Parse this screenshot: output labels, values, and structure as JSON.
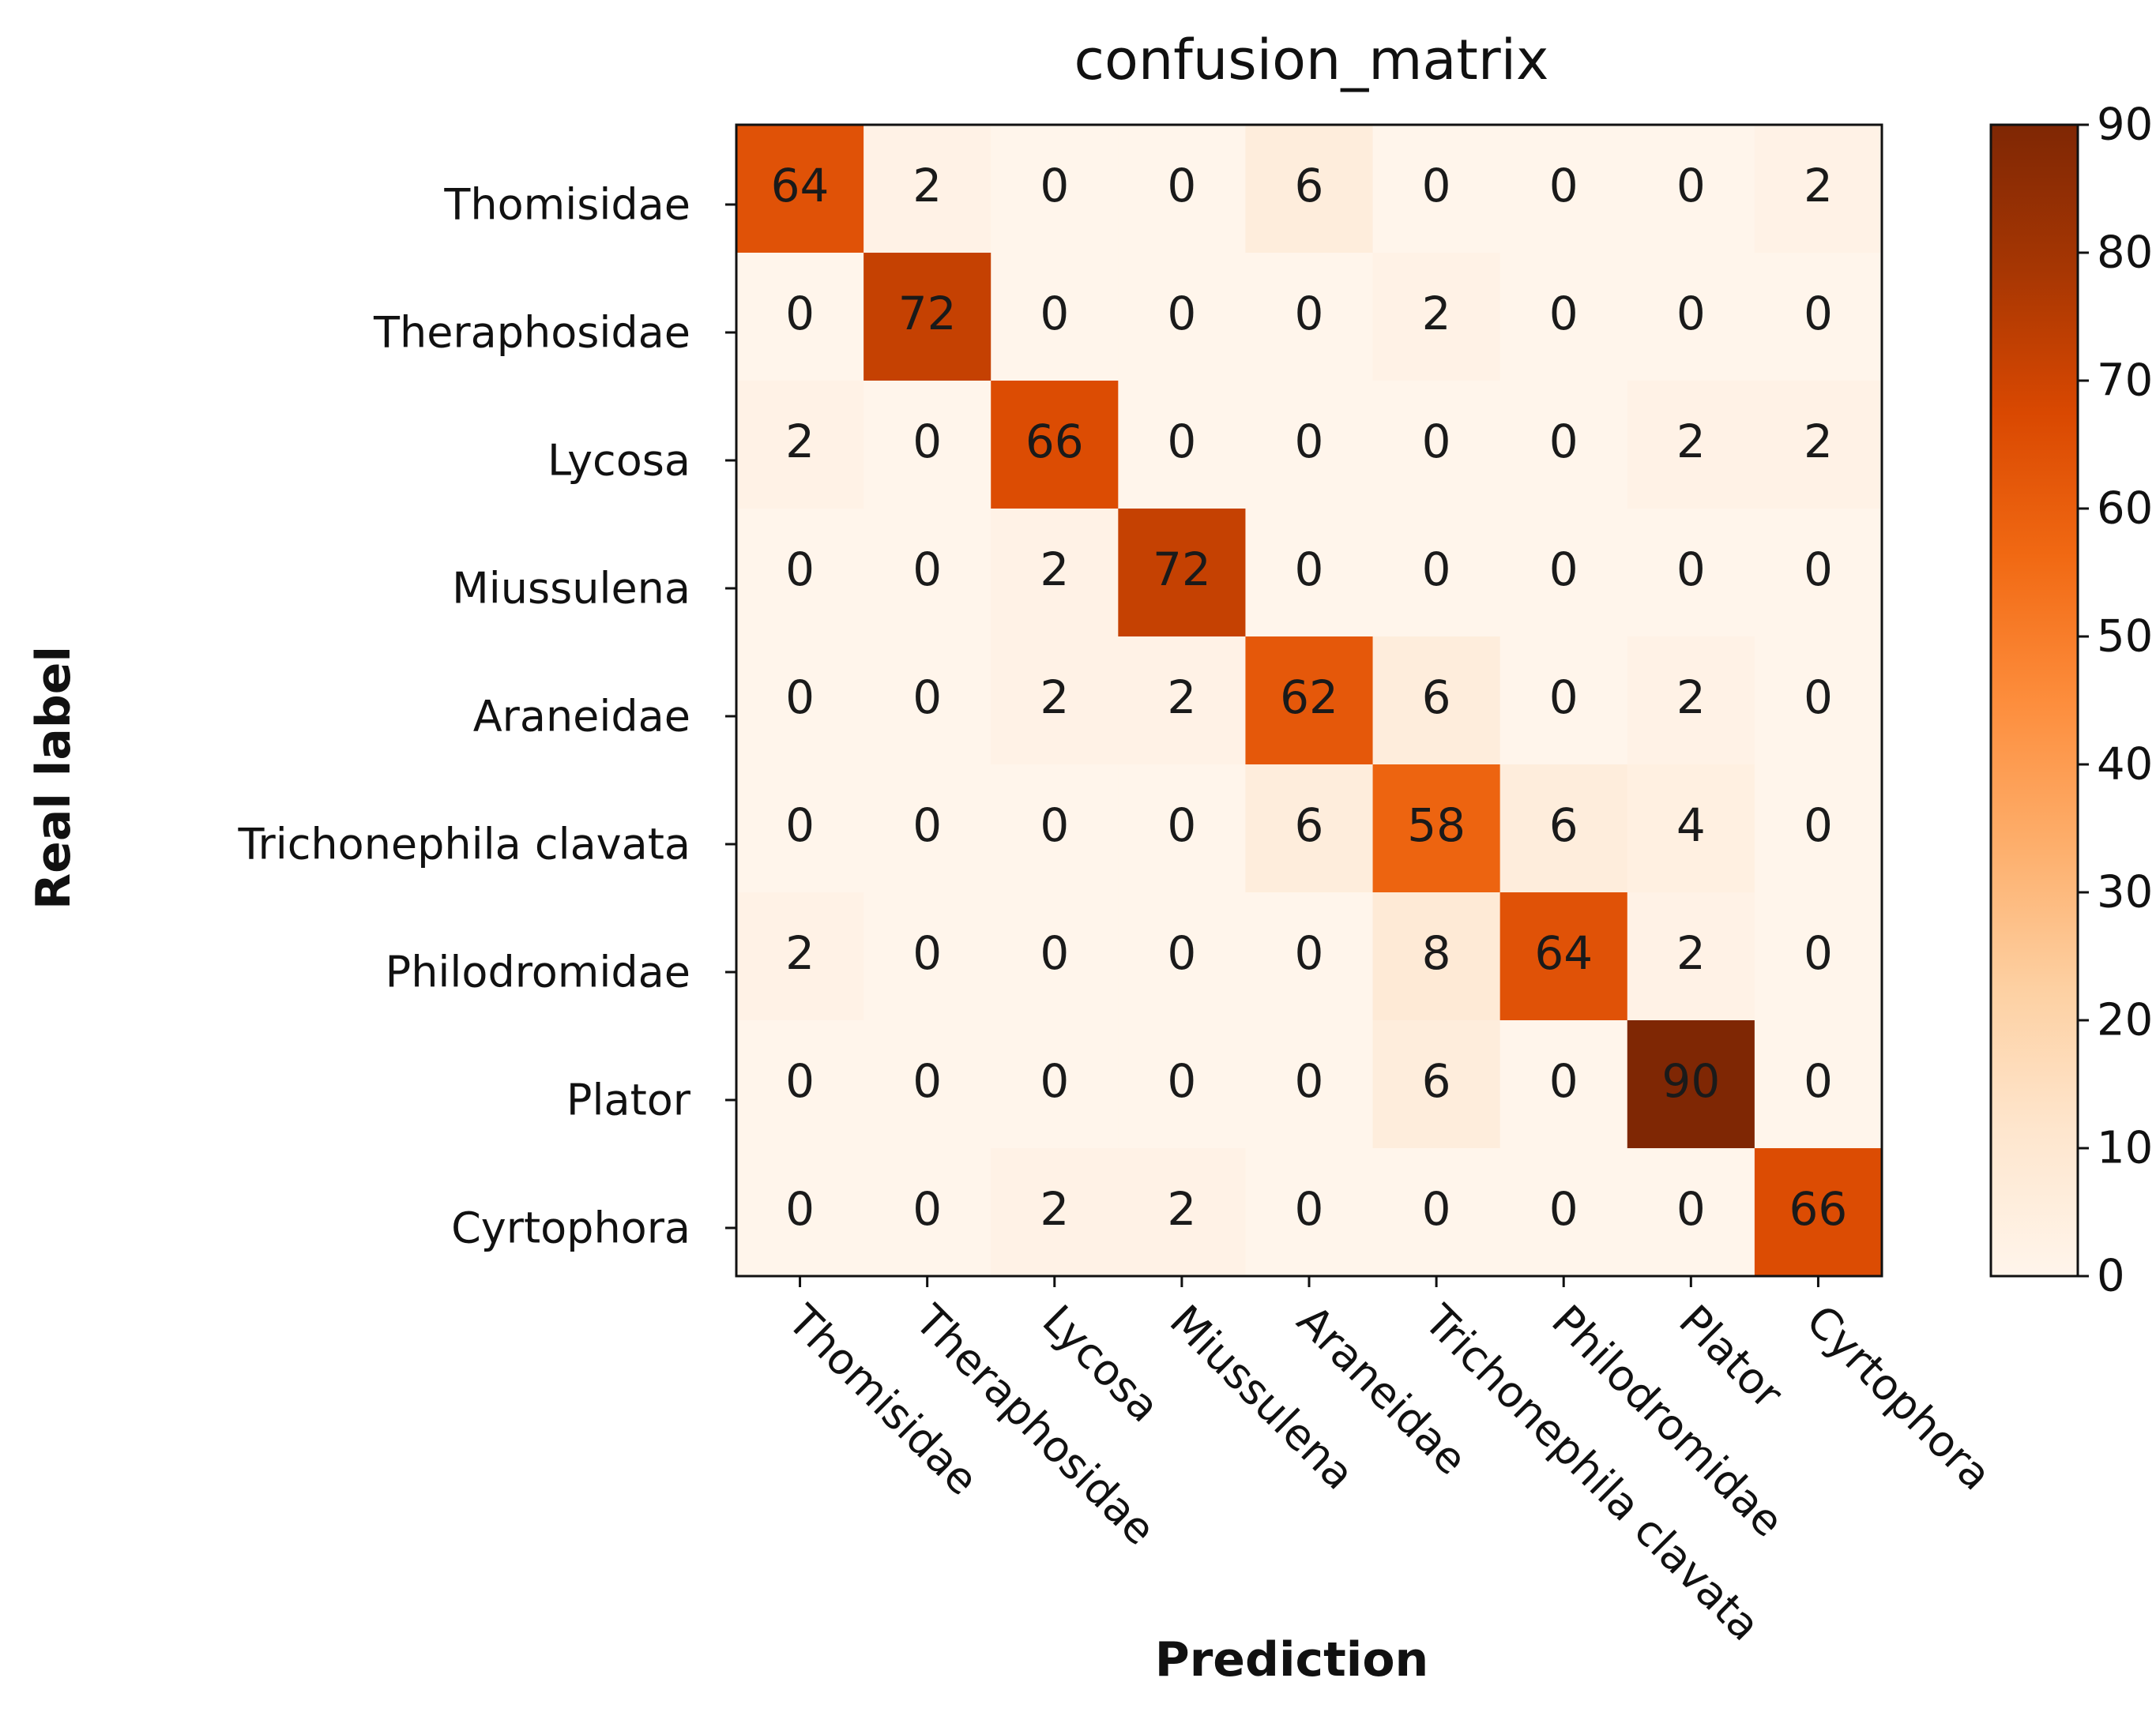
{
  "chart_data": {
    "type": "heatmap",
    "title": "confusion_matrix",
    "xlabel": "Prediction",
    "ylabel": "Real label",
    "x_categories": [
      "Thomisidae",
      "Theraphosidae",
      "Lycosa",
      "Miussulena",
      "Araneidae",
      "Trichonephila clavata",
      "Philodromidae",
      "Plator",
      "Cyrtophora"
    ],
    "y_categories": [
      "Thomisidae",
      "Theraphosidae",
      "Lycosa",
      "Miussulena",
      "Araneidae",
      "Trichonephila clavata",
      "Philodromidae",
      "Plator",
      "Cyrtophora"
    ],
    "values": [
      [
        64,
        2,
        0,
        0,
        6,
        0,
        0,
        0,
        2
      ],
      [
        0,
        72,
        0,
        0,
        0,
        2,
        0,
        0,
        0
      ],
      [
        2,
        0,
        66,
        0,
        0,
        0,
        0,
        2,
        2
      ],
      [
        0,
        0,
        2,
        72,
        0,
        0,
        0,
        0,
        0
      ],
      [
        0,
        0,
        2,
        2,
        62,
        6,
        0,
        2,
        0
      ],
      [
        0,
        0,
        0,
        0,
        6,
        58,
        6,
        4,
        0
      ],
      [
        2,
        0,
        0,
        0,
        0,
        8,
        64,
        2,
        0
      ],
      [
        0,
        0,
        0,
        0,
        0,
        6,
        0,
        90,
        0
      ],
      [
        0,
        0,
        2,
        2,
        0,
        0,
        0,
        0,
        66
      ]
    ],
    "colorbar": {
      "range": [
        0,
        90
      ],
      "ticks": [
        0,
        10,
        20,
        30,
        40,
        50,
        60,
        70,
        80,
        90
      ],
      "colormap": "Oranges",
      "colors": [
        "#fff5eb",
        "#fee6ce",
        "#fdd0a2",
        "#fdae6b",
        "#fd8d3c",
        "#f16913",
        "#d94801",
        "#a63603",
        "#7f2704"
      ]
    }
  }
}
